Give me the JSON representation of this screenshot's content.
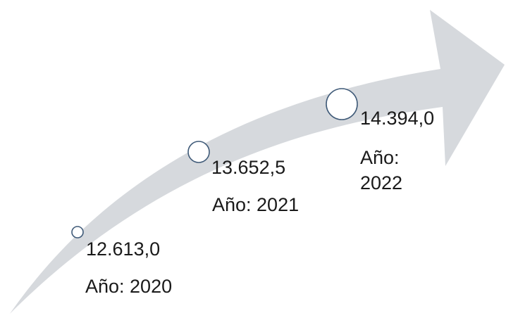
{
  "colors": {
    "arrow": "#d6d9dd",
    "circle_stroke": "#3f5a78",
    "circle_fill": "#ffffff",
    "text": "#1a1a1a"
  },
  "milestones": [
    {
      "value": "12.613,0",
      "year_label": "Año: 2020"
    },
    {
      "value": "13.652,5",
      "year_label": "Año: 2021"
    },
    {
      "value": "14.394,0",
      "year_label": "Año: 2022"
    }
  ]
}
